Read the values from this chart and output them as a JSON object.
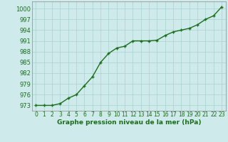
{
  "x": [
    0,
    1,
    2,
    3,
    4,
    5,
    6,
    7,
    8,
    9,
    10,
    11,
    12,
    13,
    14,
    15,
    16,
    17,
    18,
    19,
    20,
    21,
    22,
    23
  ],
  "y": [
    973,
    973,
    973,
    973.5,
    975,
    976,
    978.5,
    981,
    985,
    987.5,
    989,
    989.5,
    991,
    991,
    991,
    991.2,
    992.5,
    993.5,
    994,
    994.5,
    995.5,
    997,
    998,
    1000.5
  ],
  "line_color": "#1a6e1a",
  "marker": "+",
  "marker_size": 3,
  "marker_lw": 1.0,
  "line_width": 1.0,
  "bg_color": "#ceeaea",
  "grid_color": "#aad0d0",
  "xlabel": "Graphe pression niveau de la mer (hPa)",
  "ytick_labels": [
    "973",
    "976",
    "979",
    "982",
    "985",
    "988",
    "991",
    "994",
    "997",
    "1000"
  ],
  "ytick_vals": [
    973,
    976,
    979,
    982,
    985,
    988,
    991,
    994,
    997,
    1000
  ],
  "xtick_vals": [
    0,
    1,
    2,
    3,
    4,
    5,
    6,
    7,
    8,
    9,
    10,
    11,
    12,
    13,
    14,
    15,
    16,
    17,
    18,
    19,
    20,
    21,
    22,
    23
  ],
  "xtick_labels": [
    "0",
    "1",
    "2",
    "3",
    "4",
    "5",
    "6",
    "7",
    "8",
    "9",
    "10",
    "11",
    "12",
    "13",
    "14",
    "15",
    "16",
    "17",
    "18",
    "19",
    "20",
    "21",
    "22",
    "23"
  ],
  "ylim": [
    971.5,
    1002
  ],
  "xlim": [
    -0.5,
    23.5
  ],
  "xlabel_fontsize": 6.5,
  "tick_fontsize": 5.5,
  "ylabel_fontsize": 6,
  "spine_color": "#888888"
}
